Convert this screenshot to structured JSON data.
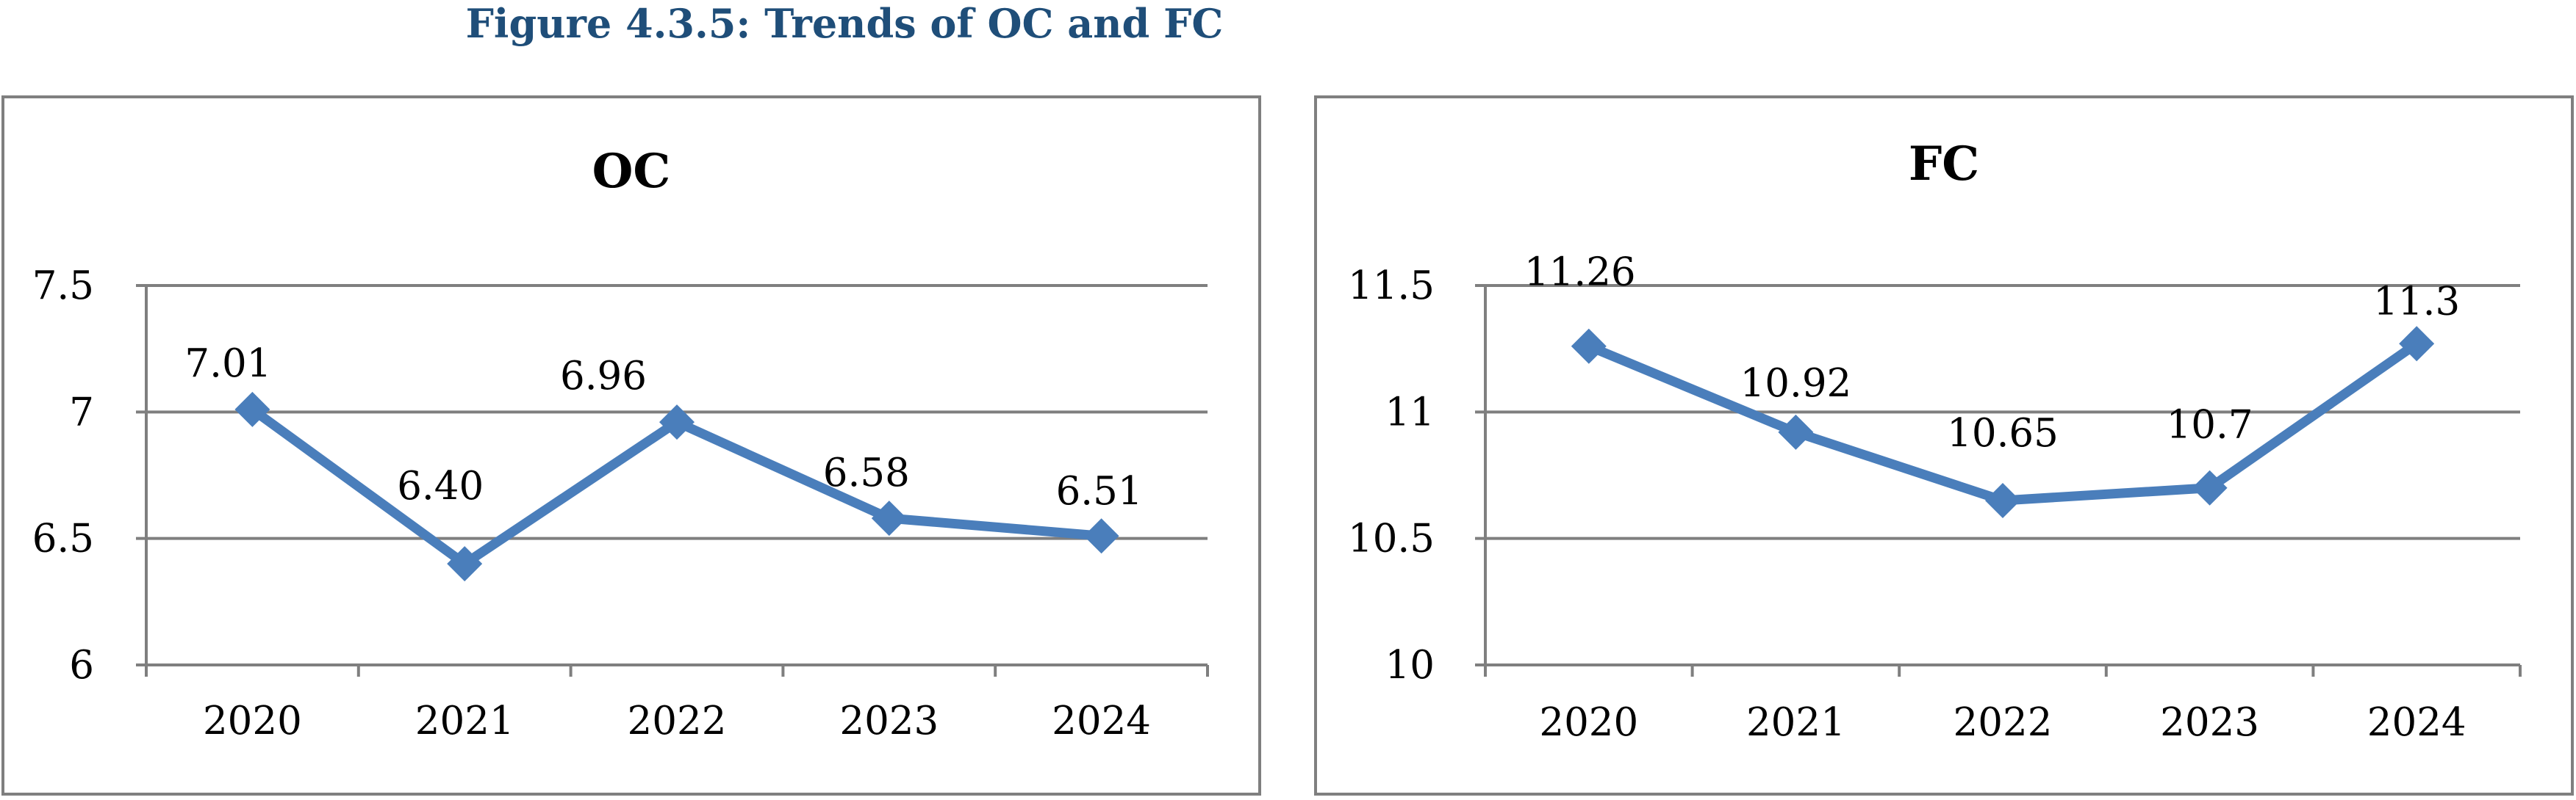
{
  "figure_title": "Figure 4.3.5: Trends of OC and FC",
  "colors": {
    "title": "#1F4E79",
    "series": "#4A7EBB",
    "grid": "#7f7f7f",
    "frame": "#7f7f7f"
  },
  "chart_data": [
    {
      "type": "line",
      "title": "OC",
      "categories": [
        "2020",
        "2021",
        "2022",
        "2023",
        "2024"
      ],
      "series": [
        {
          "values": [
            7.01,
            6.4,
            6.96,
            6.58,
            6.51
          ]
        }
      ],
      "data_labels": [
        "7.01",
        "6.40",
        "6.96",
        "6.58",
        "6.51"
      ],
      "y_ticks": [
        "6",
        "6.5",
        "7",
        "7.5"
      ],
      "ylim": [
        6,
        7.5
      ],
      "grid": true,
      "legend": "none",
      "marker": "diamond"
    },
    {
      "type": "line",
      "title": "FC",
      "categories": [
        "2020",
        "2021",
        "2022",
        "2023",
        "2024"
      ],
      "series": [
        {
          "values": [
            11.26,
            10.92,
            10.65,
            10.7,
            11.27
          ]
        }
      ],
      "data_labels": [
        "11.26",
        "10.92",
        "10.65",
        "10.7",
        "11.3"
      ],
      "y_ticks": [
        "10",
        "10.5",
        "11",
        "11.5"
      ],
      "ylim": [
        10,
        11.5
      ],
      "grid": true,
      "legend": "none",
      "marker": "diamond"
    }
  ]
}
